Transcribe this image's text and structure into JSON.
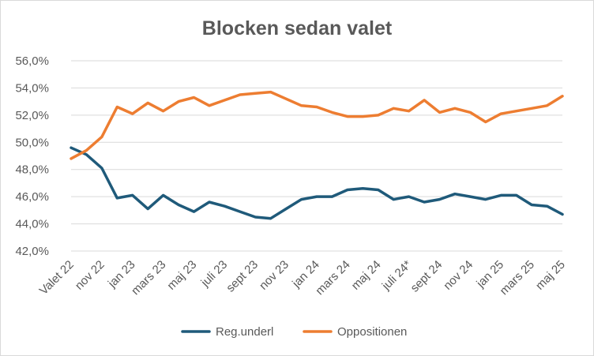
{
  "chart_data": {
    "type": "line",
    "title": "Blocken sedan valet",
    "xlabel": "",
    "ylabel": "",
    "ylim": [
      42,
      56
    ],
    "y_ticks": [
      42,
      44,
      46,
      48,
      50,
      52,
      54,
      56
    ],
    "y_tick_labels": [
      "42,0%",
      "44,0%",
      "46,0%",
      "48,0%",
      "50,0%",
      "52,0%",
      "54,0%",
      "56,0%"
    ],
    "grid": true,
    "legend_position": "bottom",
    "x_labels": [
      {
        "index": 0,
        "label": "Valet 22"
      },
      {
        "index": 2,
        "label": "nov 22"
      },
      {
        "index": 4,
        "label": "jan 23"
      },
      {
        "index": 6,
        "label": "mars 23"
      },
      {
        "index": 8,
        "label": "maj 23"
      },
      {
        "index": 10,
        "label": "juli 23"
      },
      {
        "index": 12,
        "label": "sept 23"
      },
      {
        "index": 14,
        "label": "nov 23"
      },
      {
        "index": 16,
        "label": "jan 24"
      },
      {
        "index": 18,
        "label": "mars 24"
      },
      {
        "index": 20,
        "label": "maj 24"
      },
      {
        "index": 22,
        "label": "juli 24*"
      },
      {
        "index": 24,
        "label": "sept 24"
      },
      {
        "index": 26,
        "label": "nov 24"
      },
      {
        "index": 28,
        "label": "jan 25"
      },
      {
        "index": 30,
        "label": "mars 25"
      },
      {
        "index": 32,
        "label": "maj 25"
      }
    ],
    "series": [
      {
        "name": "Reg.underl",
        "color": "#1f5a7a",
        "values": [
          49.6,
          49.1,
          48.1,
          45.9,
          46.1,
          45.1,
          46.1,
          45.4,
          44.9,
          45.6,
          45.3,
          44.9,
          44.5,
          44.4,
          45.1,
          45.8,
          46.0,
          46.0,
          46.5,
          46.6,
          46.5,
          45.8,
          46.0,
          45.6,
          45.8,
          46.2,
          46.0,
          45.8,
          46.1,
          46.1,
          45.4,
          45.3,
          44.7
        ]
      },
      {
        "name": "Oppositionen",
        "color": "#ed7d31",
        "values": [
          48.8,
          49.4,
          50.4,
          52.6,
          52.1,
          52.9,
          52.3,
          53.0,
          53.3,
          52.7,
          53.1,
          53.5,
          53.6,
          53.7,
          53.2,
          52.7,
          52.6,
          52.2,
          51.9,
          51.9,
          52.0,
          52.5,
          52.3,
          53.1,
          52.2,
          52.5,
          52.2,
          51.5,
          52.1,
          52.3,
          52.5,
          52.7,
          53.4
        ]
      }
    ]
  }
}
